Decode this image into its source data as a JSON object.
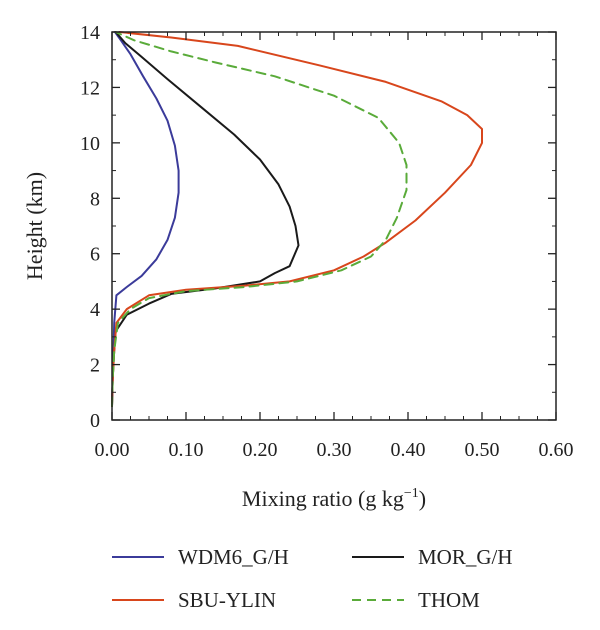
{
  "chart_data": {
    "type": "line",
    "xlabel_main": "Mixing ratio (g kg",
    "xlabel_sup": "−1",
    "xlabel_close": ")",
    "ylabel": "Height (km)",
    "xlim": [
      0,
      0.6
    ],
    "ylim": [
      0,
      14
    ],
    "x_ticks": [
      0,
      0.1,
      0.2,
      0.3,
      0.4,
      0.5,
      0.6
    ],
    "x_tick_labels": [
      "0.00",
      "0.10",
      "0.20",
      "0.30",
      "0.40",
      "0.50",
      "0.60"
    ],
    "y_ticks": [
      0,
      2,
      4,
      6,
      8,
      10,
      12,
      14
    ],
    "y_tick_labels": [
      "0",
      "2",
      "4",
      "6",
      "8",
      "10",
      "12",
      "14"
    ],
    "grid": false,
    "legend_position": "bottom",
    "series": [
      {
        "name": "WDM6_G/H",
        "color": "#3b3b9a",
        "dash": "solid",
        "points": [
          [
            0.0,
            0.5
          ],
          [
            0.001,
            1.5
          ],
          [
            0.002,
            2.5
          ],
          [
            0.003,
            3.5
          ],
          [
            0.006,
            4.5
          ],
          [
            0.02,
            4.8
          ],
          [
            0.04,
            5.2
          ],
          [
            0.06,
            5.8
          ],
          [
            0.075,
            6.5
          ],
          [
            0.085,
            7.3
          ],
          [
            0.09,
            8.2
          ],
          [
            0.09,
            9.0
          ],
          [
            0.085,
            9.9
          ],
          [
            0.075,
            10.8
          ],
          [
            0.06,
            11.6
          ],
          [
            0.042,
            12.4
          ],
          [
            0.025,
            13.2
          ],
          [
            0.012,
            13.7
          ],
          [
            0.004,
            14.0
          ]
        ]
      },
      {
        "name": "MOR_G/H",
        "color": "#1a1a1a",
        "dash": "solid",
        "points": [
          [
            0.0,
            0.5
          ],
          [
            0.001,
            1.5
          ],
          [
            0.003,
            2.5
          ],
          [
            0.005,
            3.2
          ],
          [
            0.02,
            3.8
          ],
          [
            0.05,
            4.2
          ],
          [
            0.08,
            4.55
          ],
          [
            0.14,
            4.75
          ],
          [
            0.2,
            5.0
          ],
          [
            0.22,
            5.3
          ],
          [
            0.24,
            5.55
          ],
          [
            0.252,
            6.3
          ],
          [
            0.248,
            7.0
          ],
          [
            0.24,
            7.7
          ],
          [
            0.225,
            8.5
          ],
          [
            0.2,
            9.4
          ],
          [
            0.165,
            10.3
          ],
          [
            0.12,
            11.3
          ],
          [
            0.075,
            12.3
          ],
          [
            0.04,
            13.1
          ],
          [
            0.018,
            13.6
          ],
          [
            0.005,
            14.0
          ]
        ]
      },
      {
        "name": "SBU-YLIN",
        "color": "#d8461c",
        "dash": "solid",
        "points": [
          [
            0.0,
            0.5
          ],
          [
            0.001,
            1.5
          ],
          [
            0.003,
            2.5
          ],
          [
            0.006,
            3.5
          ],
          [
            0.02,
            4.0
          ],
          [
            0.05,
            4.5
          ],
          [
            0.1,
            4.7
          ],
          [
            0.18,
            4.85
          ],
          [
            0.24,
            5.0
          ],
          [
            0.3,
            5.4
          ],
          [
            0.34,
            5.9
          ],
          [
            0.37,
            6.4
          ],
          [
            0.41,
            7.2
          ],
          [
            0.45,
            8.2
          ],
          [
            0.485,
            9.2
          ],
          [
            0.5,
            10.0
          ],
          [
            0.5,
            10.5
          ],
          [
            0.48,
            11.0
          ],
          [
            0.445,
            11.5
          ],
          [
            0.37,
            12.2
          ],
          [
            0.28,
            12.8
          ],
          [
            0.17,
            13.5
          ],
          [
            0.08,
            13.8
          ],
          [
            0.01,
            14.0
          ]
        ]
      },
      {
        "name": "THOM",
        "color": "#5aab3a",
        "dash": "dashed",
        "points": [
          [
            0.0,
            0.5
          ],
          [
            0.001,
            1.5
          ],
          [
            0.003,
            2.5
          ],
          [
            0.008,
            3.5
          ],
          [
            0.025,
            4.0
          ],
          [
            0.05,
            4.4
          ],
          [
            0.1,
            4.65
          ],
          [
            0.18,
            4.8
          ],
          [
            0.25,
            5.0
          ],
          [
            0.31,
            5.4
          ],
          [
            0.35,
            5.9
          ],
          [
            0.37,
            6.5
          ],
          [
            0.385,
            7.3
          ],
          [
            0.398,
            8.3
          ],
          [
            0.398,
            9.2
          ],
          [
            0.388,
            10.0
          ],
          [
            0.36,
            10.9
          ],
          [
            0.3,
            11.7
          ],
          [
            0.22,
            12.4
          ],
          [
            0.14,
            12.9
          ],
          [
            0.08,
            13.3
          ],
          [
            0.03,
            13.7
          ],
          [
            0.005,
            14.0
          ]
        ]
      }
    ]
  }
}
